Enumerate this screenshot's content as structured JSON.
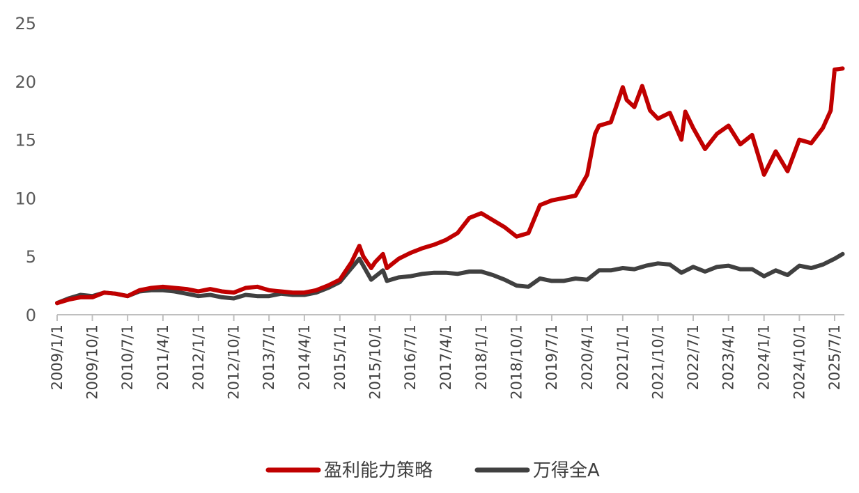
{
  "chart_data": {
    "type": "line",
    "title": "",
    "xlabel": "",
    "ylabel": "",
    "ylim": [
      0,
      25
    ],
    "yticks": [
      0,
      5,
      10,
      15,
      20,
      25
    ],
    "xticks": [
      "2009/1/1",
      "2009/10/1",
      "2010/7/1",
      "2011/4/1",
      "2012/1/1",
      "2012/10/1",
      "2013/7/1",
      "2014/4/1",
      "2015/1/1",
      "2015/10/1",
      "2016/7/1",
      "2017/4/1",
      "2018/1/1",
      "2018/10/1",
      "2019/7/1",
      "2020/4/1",
      "2021/1/1",
      "2021/10/1",
      "2022/7/1",
      "2023/4/1",
      "2024/1/1",
      "2024/10/1",
      "2025/7/1"
    ],
    "grid": false,
    "legend_position": "bottom",
    "series": [
      {
        "name": "盈利能力策略",
        "color": "#C00000",
        "points": [
          [
            "2009/1/1",
            1.0
          ],
          [
            "2009/4/1",
            1.3
          ],
          [
            "2009/7/1",
            1.5
          ],
          [
            "2009/10/1",
            1.5
          ],
          [
            "2010/1/1",
            1.9
          ],
          [
            "2010/4/1",
            1.8
          ],
          [
            "2010/7/1",
            1.6
          ],
          [
            "2010/10/1",
            2.1
          ],
          [
            "2011/1/1",
            2.3
          ],
          [
            "2011/4/1",
            2.4
          ],
          [
            "2011/7/1",
            2.3
          ],
          [
            "2011/10/1",
            2.2
          ],
          [
            "2012/1/1",
            2.0
          ],
          [
            "2012/4/1",
            2.2
          ],
          [
            "2012/7/1",
            2.0
          ],
          [
            "2012/10/1",
            1.9
          ],
          [
            "2013/1/1",
            2.3
          ],
          [
            "2013/4/1",
            2.4
          ],
          [
            "2013/7/1",
            2.1
          ],
          [
            "2013/10/1",
            2.0
          ],
          [
            "2014/1/1",
            1.9
          ],
          [
            "2014/4/1",
            1.9
          ],
          [
            "2014/7/1",
            2.1
          ],
          [
            "2014/10/1",
            2.5
          ],
          [
            "2015/1/1",
            3.0
          ],
          [
            "2015/4/1",
            4.5
          ],
          [
            "2015/6/1",
            5.9
          ],
          [
            "2015/7/1",
            5.0
          ],
          [
            "2015/9/1",
            4.0
          ],
          [
            "2015/10/1",
            4.5
          ],
          [
            "2015/12/1",
            5.2
          ],
          [
            "2016/1/1",
            4.0
          ],
          [
            "2016/4/1",
            4.8
          ],
          [
            "2016/7/1",
            5.3
          ],
          [
            "2016/10/1",
            5.7
          ],
          [
            "2017/1/1",
            6.0
          ],
          [
            "2017/4/1",
            6.4
          ],
          [
            "2017/7/1",
            7.0
          ],
          [
            "2017/10/1",
            8.3
          ],
          [
            "2018/1/1",
            8.7
          ],
          [
            "2018/4/1",
            8.1
          ],
          [
            "2018/7/1",
            7.5
          ],
          [
            "2018/10/1",
            6.7
          ],
          [
            "2019/1/1",
            7.0
          ],
          [
            "2019/4/1",
            9.4
          ],
          [
            "2019/7/1",
            9.8
          ],
          [
            "2019/10/1",
            10.0
          ],
          [
            "2020/1/1",
            10.2
          ],
          [
            "2020/4/1",
            12.0
          ],
          [
            "2020/6/1",
            15.5
          ],
          [
            "2020/7/1",
            16.2
          ],
          [
            "2020/10/1",
            16.5
          ],
          [
            "2021/1/1",
            19.5
          ],
          [
            "2021/2/1",
            18.4
          ],
          [
            "2021/4/1",
            17.8
          ],
          [
            "2021/6/1",
            19.6
          ],
          [
            "2021/8/1",
            17.5
          ],
          [
            "2021/10/1",
            16.8
          ],
          [
            "2022/1/1",
            17.3
          ],
          [
            "2022/4/1",
            15.0
          ],
          [
            "2022/5/1",
            17.4
          ],
          [
            "2022/7/1",
            16.0
          ],
          [
            "2022/10/1",
            14.2
          ],
          [
            "2023/1/1",
            15.5
          ],
          [
            "2023/4/1",
            16.2
          ],
          [
            "2023/7/1",
            14.6
          ],
          [
            "2023/10/1",
            15.4
          ],
          [
            "2024/1/1",
            12.0
          ],
          [
            "2024/4/1",
            14.0
          ],
          [
            "2024/7/1",
            12.3
          ],
          [
            "2024/10/1",
            15.0
          ],
          [
            "2025/1/1",
            14.7
          ],
          [
            "2025/4/1",
            16.0
          ],
          [
            "2025/6/1",
            17.5
          ],
          [
            "2025/7/1",
            21.0
          ],
          [
            "2025/9/1",
            21.1
          ]
        ]
      },
      {
        "name": "万得全A",
        "color": "#404040",
        "points": [
          [
            "2009/1/1",
            1.0
          ],
          [
            "2009/4/1",
            1.4
          ],
          [
            "2009/7/1",
            1.7
          ],
          [
            "2009/10/1",
            1.6
          ],
          [
            "2010/1/1",
            1.9
          ],
          [
            "2010/4/1",
            1.8
          ],
          [
            "2010/7/1",
            1.6
          ],
          [
            "2010/10/1",
            2.0
          ],
          [
            "2011/1/1",
            2.1
          ],
          [
            "2011/4/1",
            2.1
          ],
          [
            "2011/7/1",
            2.0
          ],
          [
            "2011/10/1",
            1.8
          ],
          [
            "2012/1/1",
            1.6
          ],
          [
            "2012/4/1",
            1.7
          ],
          [
            "2012/7/1",
            1.5
          ],
          [
            "2012/10/1",
            1.4
          ],
          [
            "2013/1/1",
            1.7
          ],
          [
            "2013/4/1",
            1.6
          ],
          [
            "2013/7/1",
            1.6
          ],
          [
            "2013/10/1",
            1.8
          ],
          [
            "2014/1/1",
            1.7
          ],
          [
            "2014/4/1",
            1.7
          ],
          [
            "2014/7/1",
            1.9
          ],
          [
            "2014/10/1",
            2.3
          ],
          [
            "2015/1/1",
            2.8
          ],
          [
            "2015/4/1",
            4.0
          ],
          [
            "2015/6/1",
            4.8
          ],
          [
            "2015/9/1",
            3.0
          ],
          [
            "2015/12/1",
            3.8
          ],
          [
            "2016/1/1",
            2.9
          ],
          [
            "2016/4/1",
            3.2
          ],
          [
            "2016/7/1",
            3.3
          ],
          [
            "2016/10/1",
            3.5
          ],
          [
            "2017/1/1",
            3.6
          ],
          [
            "2017/4/1",
            3.6
          ],
          [
            "2017/7/1",
            3.5
          ],
          [
            "2017/10/1",
            3.7
          ],
          [
            "2018/1/1",
            3.7
          ],
          [
            "2018/4/1",
            3.4
          ],
          [
            "2018/7/1",
            3.0
          ],
          [
            "2018/10/1",
            2.5
          ],
          [
            "2019/1/1",
            2.4
          ],
          [
            "2019/4/1",
            3.1
          ],
          [
            "2019/7/1",
            2.9
          ],
          [
            "2019/10/1",
            2.9
          ],
          [
            "2020/1/1",
            3.1
          ],
          [
            "2020/4/1",
            3.0
          ],
          [
            "2020/7/1",
            3.8
          ],
          [
            "2020/10/1",
            3.8
          ],
          [
            "2021/1/1",
            4.0
          ],
          [
            "2021/4/1",
            3.9
          ],
          [
            "2021/7/1",
            4.2
          ],
          [
            "2021/10/1",
            4.4
          ],
          [
            "2022/1/1",
            4.3
          ],
          [
            "2022/4/1",
            3.6
          ],
          [
            "2022/7/1",
            4.1
          ],
          [
            "2022/10/1",
            3.7
          ],
          [
            "2023/1/1",
            4.1
          ],
          [
            "2023/4/1",
            4.2
          ],
          [
            "2023/7/1",
            3.9
          ],
          [
            "2023/10/1",
            3.9
          ],
          [
            "2024/1/1",
            3.3
          ],
          [
            "2024/4/1",
            3.8
          ],
          [
            "2024/7/1",
            3.4
          ],
          [
            "2024/10/1",
            4.2
          ],
          [
            "2025/1/1",
            4.0
          ],
          [
            "2025/4/1",
            4.3
          ],
          [
            "2025/7/1",
            4.8
          ],
          [
            "2025/9/1",
            5.2
          ]
        ]
      }
    ]
  }
}
